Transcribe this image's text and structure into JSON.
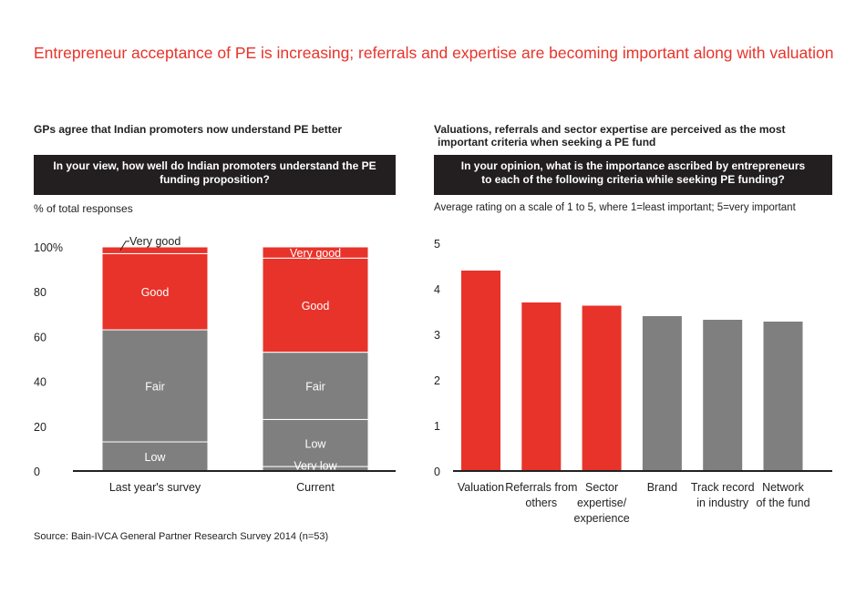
{
  "title": "Entrepreneur acceptance of PE is increasing; referrals and expertise are becoming important along with valuation",
  "source": "Source: Bain-IVCA General Partner Research Survey 2014 (n=53)",
  "colors": {
    "red": "#e8332a",
    "gray": "#7f7f80",
    "dark": "#231f20",
    "axis": "#222222"
  },
  "chart_data": [
    {
      "type": "bar",
      "stacked": true,
      "subtitle": "GPs agree that Indian promoters now understand PE better",
      "question_line1": "In your view, how well do Indian promoters understand the PE",
      "question_line2": "funding proposition?",
      "units": "% of total responses",
      "ylim": [
        0,
        100
      ],
      "yticks": [
        "0",
        "20",
        "40",
        "60",
        "80",
        "100%"
      ],
      "categories": [
        "Last year's survey",
        "Current"
      ],
      "series": [
        {
          "name": "Very low",
          "label": "Very low",
          "color": "gray",
          "values": [
            0,
            2
          ]
        },
        {
          "name": "Low",
          "label": "Low",
          "color": "gray",
          "values": [
            13,
            21
          ]
        },
        {
          "name": "Fair",
          "label": "Fair",
          "color": "gray",
          "values": [
            50,
            30
          ]
        },
        {
          "name": "Good",
          "label": "Good",
          "color": "red",
          "values": [
            34,
            42
          ]
        },
        {
          "name": "Very good",
          "label": "Very good",
          "color": "red",
          "values": [
            3,
            5
          ]
        }
      ]
    },
    {
      "type": "bar",
      "subtitle_line1": "Valuations, referrals and sector expertise are perceived as the most",
      "subtitle_line2": "important criteria when seeking a PE fund",
      "question_line1": "In your opinion, what is the importance ascribed by entrepreneurs",
      "question_line2": "to each of the following criteria while seeking PE funding?",
      "units": "Average rating on a scale of 1 to 5, where 1=least important; 5=very important",
      "ylim": [
        0,
        5
      ],
      "yticks": [
        "0",
        "1",
        "2",
        "3",
        "4",
        "5"
      ],
      "categories": [
        [
          "Valuation"
        ],
        [
          "Referrals from",
          "others"
        ],
        [
          "Sector",
          "expertise/",
          "experience"
        ],
        [
          "Brand"
        ],
        [
          "Track record",
          "in industry"
        ],
        [
          "Network",
          "of the fund"
        ]
      ],
      "values": [
        4.4,
        3.7,
        3.63,
        3.4,
        3.32,
        3.28
      ],
      "colors": [
        "red",
        "red",
        "red",
        "gray",
        "gray",
        "gray"
      ]
    }
  ]
}
